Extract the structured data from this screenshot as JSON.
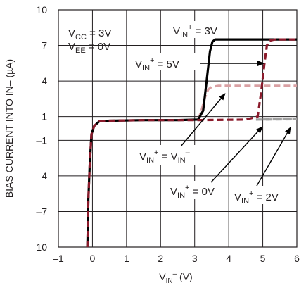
{
  "chart_data": {
    "type": "line",
    "xlabel": {
      "main": "V",
      "sub": "IN",
      "sup": "–",
      "rest": " (V)"
    },
    "ylabel": "BIAS CURRENT INTO IN– (µA)",
    "xlim": [
      -1,
      6
    ],
    "ylim": [
      -10,
      10
    ],
    "x_ticks": [
      "–1",
      "0",
      "1",
      "2",
      "3",
      "4",
      "5",
      "6"
    ],
    "y_ticks": [
      "10",
      "7",
      "4",
      "1",
      "–1",
      "–4",
      "–7",
      "–10"
    ],
    "grid": true,
    "conditions": [
      {
        "main": "V",
        "sub": "CC",
        "rest": " = 3V"
      },
      {
        "main": "V",
        "sub": "EE",
        "rest": " = 0V"
      }
    ],
    "series": [
      {
        "name": "VIN+ = 3V",
        "color": "#000000",
        "dash": "solid",
        "x": [
          -0.15,
          -0.12,
          -0.08,
          -0.03,
          0.05,
          0.2,
          0.5,
          1.5,
          2.5,
          3.1,
          3.25,
          3.35,
          3.45,
          3.52,
          3.6,
          3.8,
          6.0
        ],
        "y": [
          -10,
          -6,
          -3,
          -0.5,
          0.2,
          0.6,
          0.65,
          0.7,
          0.7,
          0.75,
          1.5,
          4,
          6.5,
          7.3,
          7.5,
          7.5,
          7.5
        ]
      },
      {
        "name": "VIN+ = 5V",
        "color": "#8b1a2b",
        "dash": "dashed",
        "x": [
          -0.15,
          -0.12,
          -0.08,
          -0.03,
          0.05,
          0.2,
          0.5,
          1.5,
          3.0,
          4.5,
          4.85,
          4.95,
          5.05,
          5.12,
          5.2,
          5.35,
          6.0
        ],
        "y": [
          -10,
          -6,
          -3,
          -0.5,
          0.2,
          0.6,
          0.65,
          0.7,
          0.7,
          0.75,
          1.0,
          3.0,
          5.5,
          7.0,
          7.4,
          7.5,
          7.5
        ]
      },
      {
        "name": "VIN+ = VIN–",
        "color": "#d9a0a3",
        "dash": "dashed",
        "x": [
          3.1,
          3.2,
          3.3,
          3.4,
          3.5,
          3.7,
          6.0
        ],
        "y": [
          0.75,
          1.5,
          2.6,
          3.3,
          3.5,
          3.6,
          3.6
        ]
      },
      {
        "name": "VIN+ = 0V",
        "color": "#a0a0a0",
        "dash": "dashed",
        "x": [
          4.8,
          6.0
        ],
        "y": [
          0.75,
          0.78
        ]
      },
      {
        "name": "VIN+ = 2V",
        "color": "#a0a0a0",
        "dash": "dashed",
        "x": [
          5.0,
          6.0
        ],
        "y": [
          0.76,
          0.8
        ]
      }
    ],
    "annotations": [
      {
        "id": "v3",
        "main": "V",
        "sub": "IN",
        "sup": "+",
        "rest": " = 3V"
      },
      {
        "id": "v5",
        "main": "V",
        "sub": "IN",
        "sup": "+",
        "rest": " = 5V"
      },
      {
        "id": "veq",
        "main": "V",
        "sub": "IN",
        "sup": "+",
        "rest": " = V",
        "sub2": "IN",
        "sup2": "–"
      },
      {
        "id": "v0",
        "main": "V",
        "sub": "IN",
        "sup": "+",
        "rest": " = 0V"
      },
      {
        "id": "v2",
        "main": "V",
        "sub": "IN",
        "sup": "+",
        "rest": " = 2V"
      }
    ]
  }
}
